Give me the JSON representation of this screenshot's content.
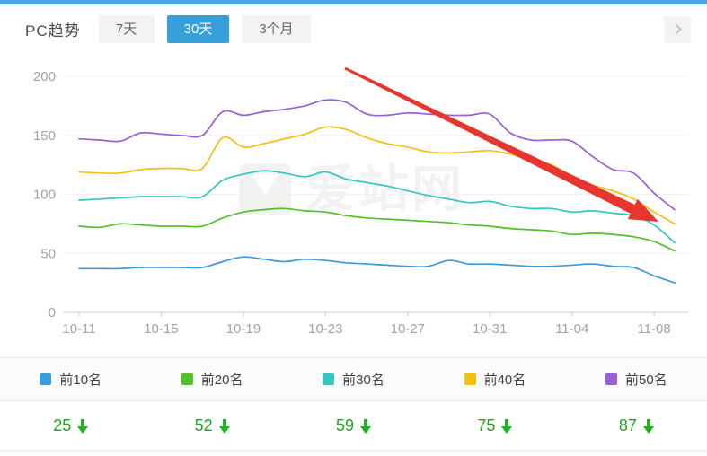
{
  "header": {
    "title": "PC趋势",
    "tabs": [
      {
        "label": "7天",
        "active": false
      },
      {
        "label": "30天",
        "active": true
      },
      {
        "label": "3个月",
        "active": false
      }
    ],
    "accent_color": "#36a0da"
  },
  "watermark": {
    "text": "爱站网"
  },
  "chart_data": {
    "type": "line",
    "title": "PC趋势 30天",
    "xlabel": "",
    "ylabel": "",
    "ylim": [
      0,
      200
    ],
    "yticks": [
      0,
      50,
      100,
      150,
      200
    ],
    "xtick_every": 4,
    "grid": true,
    "legend_position": "bottom",
    "x": [
      "10-11",
      "10-12",
      "10-13",
      "10-14",
      "10-15",
      "10-16",
      "10-17",
      "10-18",
      "10-19",
      "10-20",
      "10-21",
      "10-22",
      "10-23",
      "10-24",
      "10-25",
      "10-26",
      "10-27",
      "10-28",
      "10-29",
      "10-30",
      "10-31",
      "11-01",
      "11-02",
      "11-03",
      "11-04",
      "11-05",
      "11-06",
      "11-07",
      "11-08",
      "11-09"
    ],
    "series": [
      {
        "name": "前10名",
        "color": "#3C9BDC",
        "values": [
          37,
          37,
          37,
          38,
          38,
          38,
          38,
          43,
          47,
          45,
          43,
          45,
          44,
          42,
          41,
          40,
          39,
          39,
          44,
          41,
          41,
          40,
          39,
          39,
          40,
          41,
          39,
          38,
          31,
          25
        ]
      },
      {
        "name": "前20名",
        "color": "#55BF29",
        "values": [
          73,
          72,
          75,
          74,
          73,
          73,
          73,
          80,
          85,
          87,
          88,
          86,
          85,
          82,
          80,
          79,
          78,
          77,
          76,
          74,
          73,
          71,
          70,
          69,
          66,
          67,
          66,
          64,
          60,
          52
        ]
      },
      {
        "name": "前30名",
        "color": "#35C6BE",
        "values": [
          95,
          96,
          97,
          98,
          98,
          98,
          98,
          112,
          117,
          120,
          118,
          115,
          119,
          113,
          110,
          107,
          103,
          99,
          96,
          93,
          94,
          90,
          88,
          88,
          85,
          86,
          84,
          82,
          74,
          59
        ]
      },
      {
        "name": "前40名",
        "color": "#F3C013",
        "values": [
          119,
          118,
          118,
          121,
          122,
          122,
          122,
          148,
          140,
          143,
          147,
          151,
          157,
          155,
          148,
          143,
          140,
          136,
          135,
          136,
          137,
          134,
          129,
          125,
          115,
          108,
          103,
          96,
          85,
          75
        ]
      },
      {
        "name": "前50名",
        "color": "#9A5FD5",
        "values": [
          147,
          146,
          145,
          152,
          151,
          150,
          150,
          170,
          167,
          170,
          172,
          175,
          180,
          178,
          168,
          167,
          169,
          168,
          167,
          167,
          168,
          152,
          146,
          146,
          145,
          132,
          121,
          118,
          101,
          87
        ]
      }
    ]
  },
  "annotation_arrow": {
    "from": [
      384,
      16
    ],
    "to": [
      733,
      187
    ],
    "color": "#E6362E"
  },
  "legend": {
    "items": [
      {
        "label": "前10名",
        "color": "#3C9BDC"
      },
      {
        "label": "前20名",
        "color": "#55BF29"
      },
      {
        "label": "前30名",
        "color": "#35C6BE"
      },
      {
        "label": "前40名",
        "color": "#F3C013"
      },
      {
        "label": "前50名",
        "color": "#9A5FD5"
      }
    ]
  },
  "summary": {
    "color": "#1FA51F",
    "items": [
      {
        "value": "25",
        "direction": "down"
      },
      {
        "value": "52",
        "direction": "down"
      },
      {
        "value": "59",
        "direction": "down"
      },
      {
        "value": "75",
        "direction": "down"
      },
      {
        "value": "87",
        "direction": "down"
      }
    ]
  }
}
